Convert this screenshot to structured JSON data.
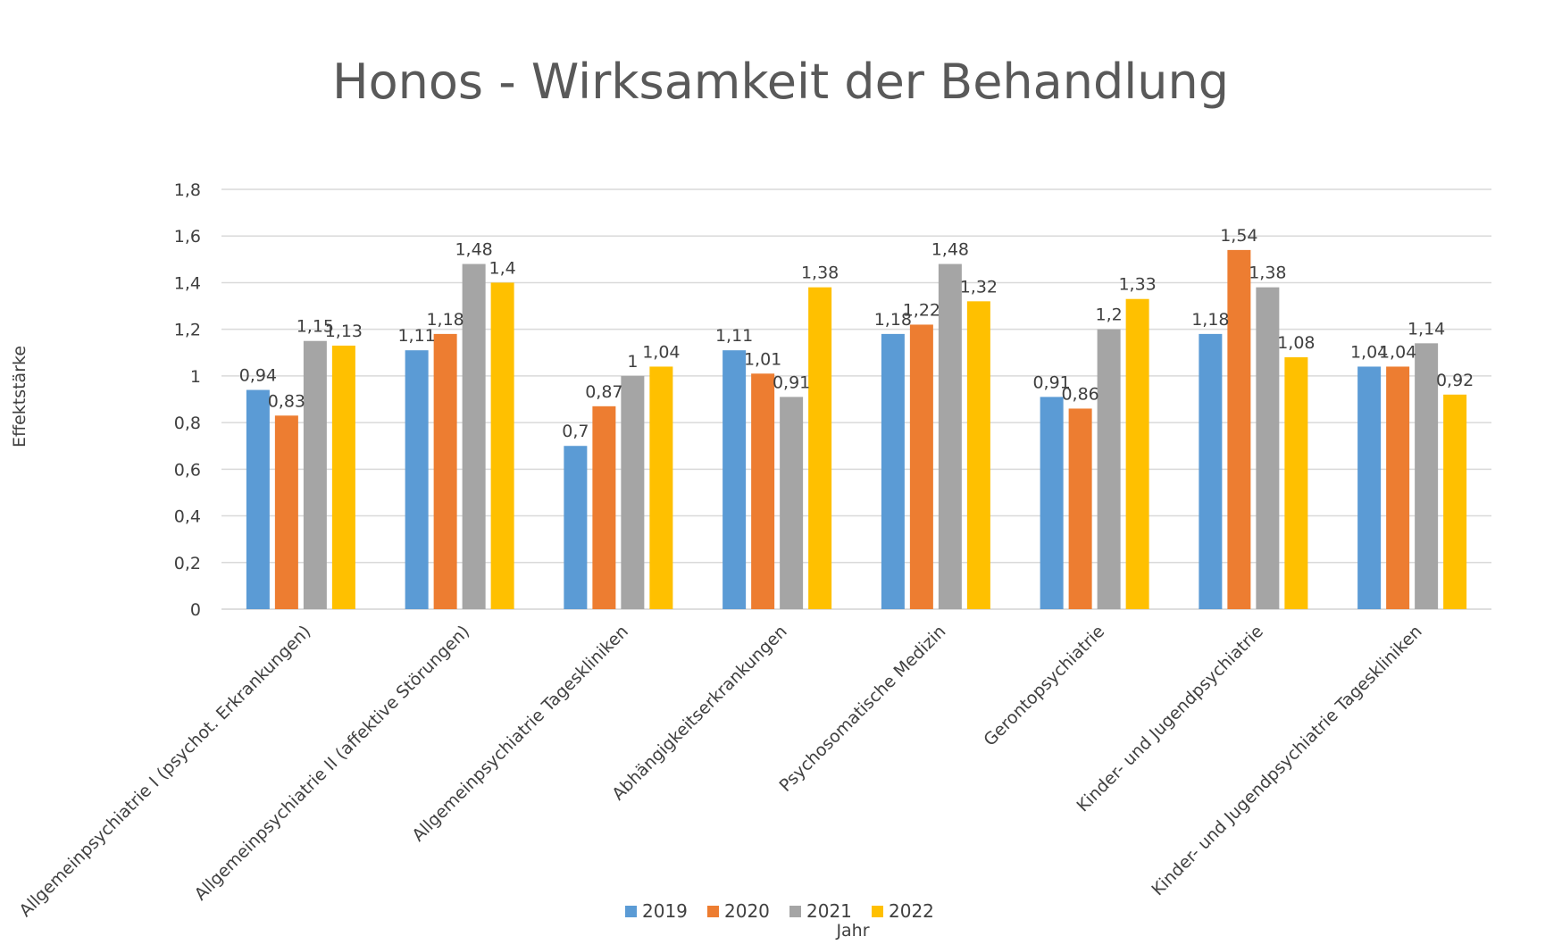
{
  "chart_data": {
    "type": "bar",
    "title": "Honos - Wirksamkeit der Behandlung",
    "xlabel": "Jahr",
    "ylabel": "Effektstärke",
    "ylim": [
      0,
      1.8
    ],
    "ytick_step": 0.2,
    "yticks": [
      "0",
      "0,2",
      "0,4",
      "0,6",
      "0,8",
      "1",
      "1,2",
      "1,4",
      "1,6",
      "1,8"
    ],
    "grid": true,
    "legend_position": "bottom",
    "categories": [
      "Allgemeinpsychiatrie I (psychot. Erkrankungen)",
      "Allgemeinpsychiatrie II (affektive Störungen)",
      "Allgemeinpsychiatrie Tageskliniken",
      "Abhängigkeitserkrankungen",
      "Psychosomatische Medizin",
      "Gerontopsychiatrie",
      "Kinder- und Jugendpsychiatrie",
      "Kinder- und Jugendpsychiatrie Tageskliniken"
    ],
    "series": [
      {
        "name": "2019",
        "color": "#5B9BD5",
        "values": [
          0.94,
          1.11,
          0.7,
          1.11,
          1.18,
          0.91,
          1.18,
          1.04
        ],
        "labels": [
          "0,94",
          "1,11",
          "0,7",
          "1,11",
          "1,18",
          "0,91",
          "1,18",
          "1,04"
        ]
      },
      {
        "name": "2020",
        "color": "#ED7D31",
        "values": [
          0.83,
          1.18,
          0.87,
          1.01,
          1.22,
          0.86,
          1.54,
          1.04
        ],
        "labels": [
          "0,83",
          "1,18",
          "0,87",
          "1,01",
          "1,22",
          "0,86",
          "1,54",
          "1,04"
        ]
      },
      {
        "name": "2021",
        "color": "#A5A5A5",
        "values": [
          1.15,
          1.48,
          1.0,
          0.91,
          1.48,
          1.2,
          1.38,
          1.14
        ],
        "labels": [
          "1,15",
          "1,48",
          "1",
          "0,91",
          "1,48",
          "1,2",
          "1,38",
          "1,14"
        ]
      },
      {
        "name": "2022",
        "color": "#FFC000",
        "values": [
          1.13,
          1.4,
          1.04,
          1.38,
          1.32,
          1.33,
          1.08,
          0.92
        ],
        "labels": [
          "1,13",
          "1,4",
          "1,04",
          "1,38",
          "1,32",
          "1,33",
          "1,08",
          "0,92"
        ]
      }
    ]
  }
}
